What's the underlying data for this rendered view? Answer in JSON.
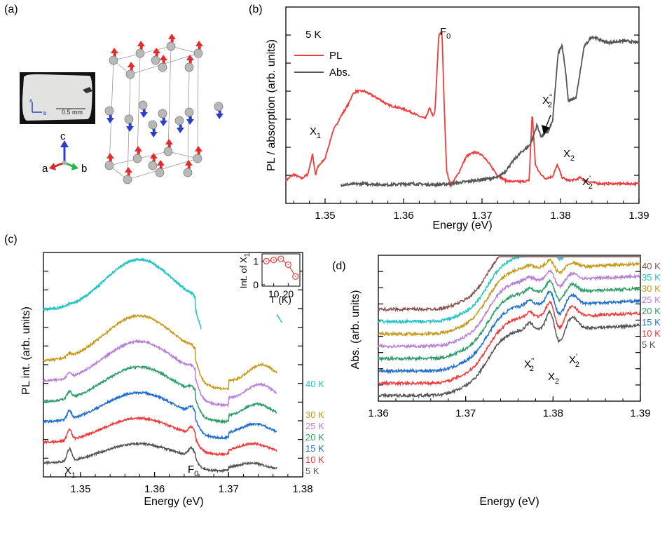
{
  "panels": {
    "a": "(a)",
    "b": "(b)",
    "c": "(c)",
    "d": "(d)"
  },
  "crystal": {
    "scale_bar": "0.5 mm",
    "photo_axes": [
      "a",
      "b"
    ],
    "axes": [
      "c",
      "a",
      "b"
    ],
    "colors": {
      "spin_up": "#e52a2a",
      "spin_down": "#2a3fc9",
      "atom": "#b8b8b8"
    }
  },
  "chart_data": [
    {
      "id": "b",
      "type": "line",
      "xlabel": "Energy (eV)",
      "ylabel": "PL / absorption (arb. units)",
      "xlim": [
        1.345,
        1.39
      ],
      "xticks": [
        "1.35",
        "1.36",
        "1.37",
        "1.38",
        "1.39"
      ],
      "temperature": "5 K",
      "legend": {
        "position": "top-left",
        "entries": [
          "PL",
          "Abs."
        ]
      },
      "series": [
        {
          "name": "PL",
          "color": "#ef3b3b",
          "x": [
            1.345,
            1.346,
            1.347,
            1.3478,
            1.3484,
            1.3488,
            1.349,
            1.35,
            1.351,
            1.352,
            1.353,
            1.3535,
            1.354,
            1.355,
            1.356,
            1.357,
            1.358,
            1.359,
            1.36,
            1.361,
            1.362,
            1.3628,
            1.3633,
            1.3638,
            1.364,
            1.3645,
            1.3649,
            1.3652,
            1.3655,
            1.366,
            1.367,
            1.368,
            1.369,
            1.37,
            1.371,
            1.372,
            1.373,
            1.374,
            1.375,
            1.376,
            1.3764,
            1.3768,
            1.3772,
            1.378,
            1.379,
            1.3796,
            1.3802,
            1.381,
            1.382,
            1.3825,
            1.383,
            1.385,
            1.39
          ],
          "y": [
            0.03,
            0.09,
            0.05,
            0.09,
            0.28,
            0.08,
            0.15,
            0.24,
            0.5,
            0.64,
            0.76,
            0.85,
            0.88,
            0.88,
            0.84,
            0.8,
            0.75,
            0.73,
            0.71,
            0.68,
            0.64,
            0.62,
            0.72,
            0.64,
            0.68,
            1.42,
            1.44,
            0.7,
            0.12,
            -0.02,
            0.1,
            0.26,
            0.3,
            0.28,
            0.18,
            0.08,
            0.03,
            0.02,
            0.02,
            0.03,
            0.68,
            0.18,
            0.12,
            0.05,
            0.07,
            0.18,
            0.06,
            0.03,
            0.04,
            0.06,
            0.03,
            0.0,
            0.0
          ]
        },
        {
          "name": "Abs.",
          "color": "#555555",
          "x": [
            1.352,
            1.355,
            1.358,
            1.361,
            1.364,
            1.366,
            1.368,
            1.37,
            1.372,
            1.373,
            1.374,
            1.375,
            1.376,
            1.3765,
            1.377,
            1.3775,
            1.3785,
            1.379,
            1.3797,
            1.3802,
            1.3807,
            1.381,
            1.382,
            1.383,
            1.384,
            1.386,
            1.388,
            1.39
          ],
          "y": [
            -0.01,
            0.0,
            -0.01,
            0.0,
            -0.01,
            0.0,
            0.02,
            0.04,
            0.06,
            0.12,
            0.22,
            0.3,
            0.36,
            0.44,
            0.56,
            0.45,
            0.5,
            0.6,
            1.24,
            1.32,
            1.04,
            0.78,
            0.82,
            1.3,
            1.4,
            1.34,
            1.36,
            1.34
          ]
        }
      ],
      "annotations": [
        "X1",
        "F0",
        "X2''",
        "X2",
        "X2'"
      ]
    },
    {
      "id": "c",
      "type": "line",
      "xlabel": "Energy (eV)",
      "ylabel": "PL int. (arb. units)",
      "xlim": [
        1.345,
        1.38
      ],
      "xticks": [
        "1.35",
        "1.36",
        "1.37",
        "1.38"
      ],
      "series": [
        {
          "name": "5 K",
          "color": "#555555",
          "offset": 0
        },
        {
          "name": "10 K",
          "color": "#ef3b3b",
          "offset": 0.5
        },
        {
          "name": "15 K",
          "color": "#1f6fd1",
          "offset": 1.0
        },
        {
          "name": "20 K",
          "color": "#2e9e6a",
          "offset": 1.5
        },
        {
          "name": "25 K",
          "color": "#b77fd9",
          "offset": 2.0
        },
        {
          "name": "30 K",
          "color": "#c79a1a",
          "offset": 2.5
        },
        {
          "name": "40 K",
          "color": "#23c4c4",
          "offset": 3.4
        }
      ],
      "annotations": [
        "X1",
        "F0"
      ],
      "inset": {
        "type": "scatter",
        "xlabel": "T (K)",
        "ylabel": "Int. of X1",
        "xticks": [
          "10",
          "20"
        ],
        "yticks": [
          "0",
          "1"
        ],
        "x": [
          5,
          10,
          15,
          20,
          25
        ],
        "y": [
          1.0,
          1.05,
          1.1,
          0.85,
          0.35
        ],
        "color": "#ef3b3b"
      }
    },
    {
      "id": "d",
      "type": "line",
      "xlabel": "Energy (eV)",
      "ylabel": "Abs. (arb. units)",
      "xlim": [
        1.36,
        1.39
      ],
      "xticks": [
        "1.36",
        "1.37",
        "1.38",
        "1.39"
      ],
      "series": [
        {
          "name": "5 K",
          "color": "#555555",
          "offset": 0
        },
        {
          "name": "10 K",
          "color": "#ef3b3b",
          "offset": 1
        },
        {
          "name": "15 K",
          "color": "#1f6fd1",
          "offset": 2
        },
        {
          "name": "20 K",
          "color": "#2e9e6a",
          "offset": 3
        },
        {
          "name": "25 K",
          "color": "#b77fd9",
          "offset": 4
        },
        {
          "name": "30 K",
          "color": "#c79a1a",
          "offset": 5
        },
        {
          "name": "35 K",
          "color": "#23c4c4",
          "offset": 6
        },
        {
          "name": "40 K",
          "color": "#8a5050",
          "offset": 7
        }
      ],
      "annotations": [
        "X2''",
        "X2",
        "X2'"
      ]
    }
  ]
}
